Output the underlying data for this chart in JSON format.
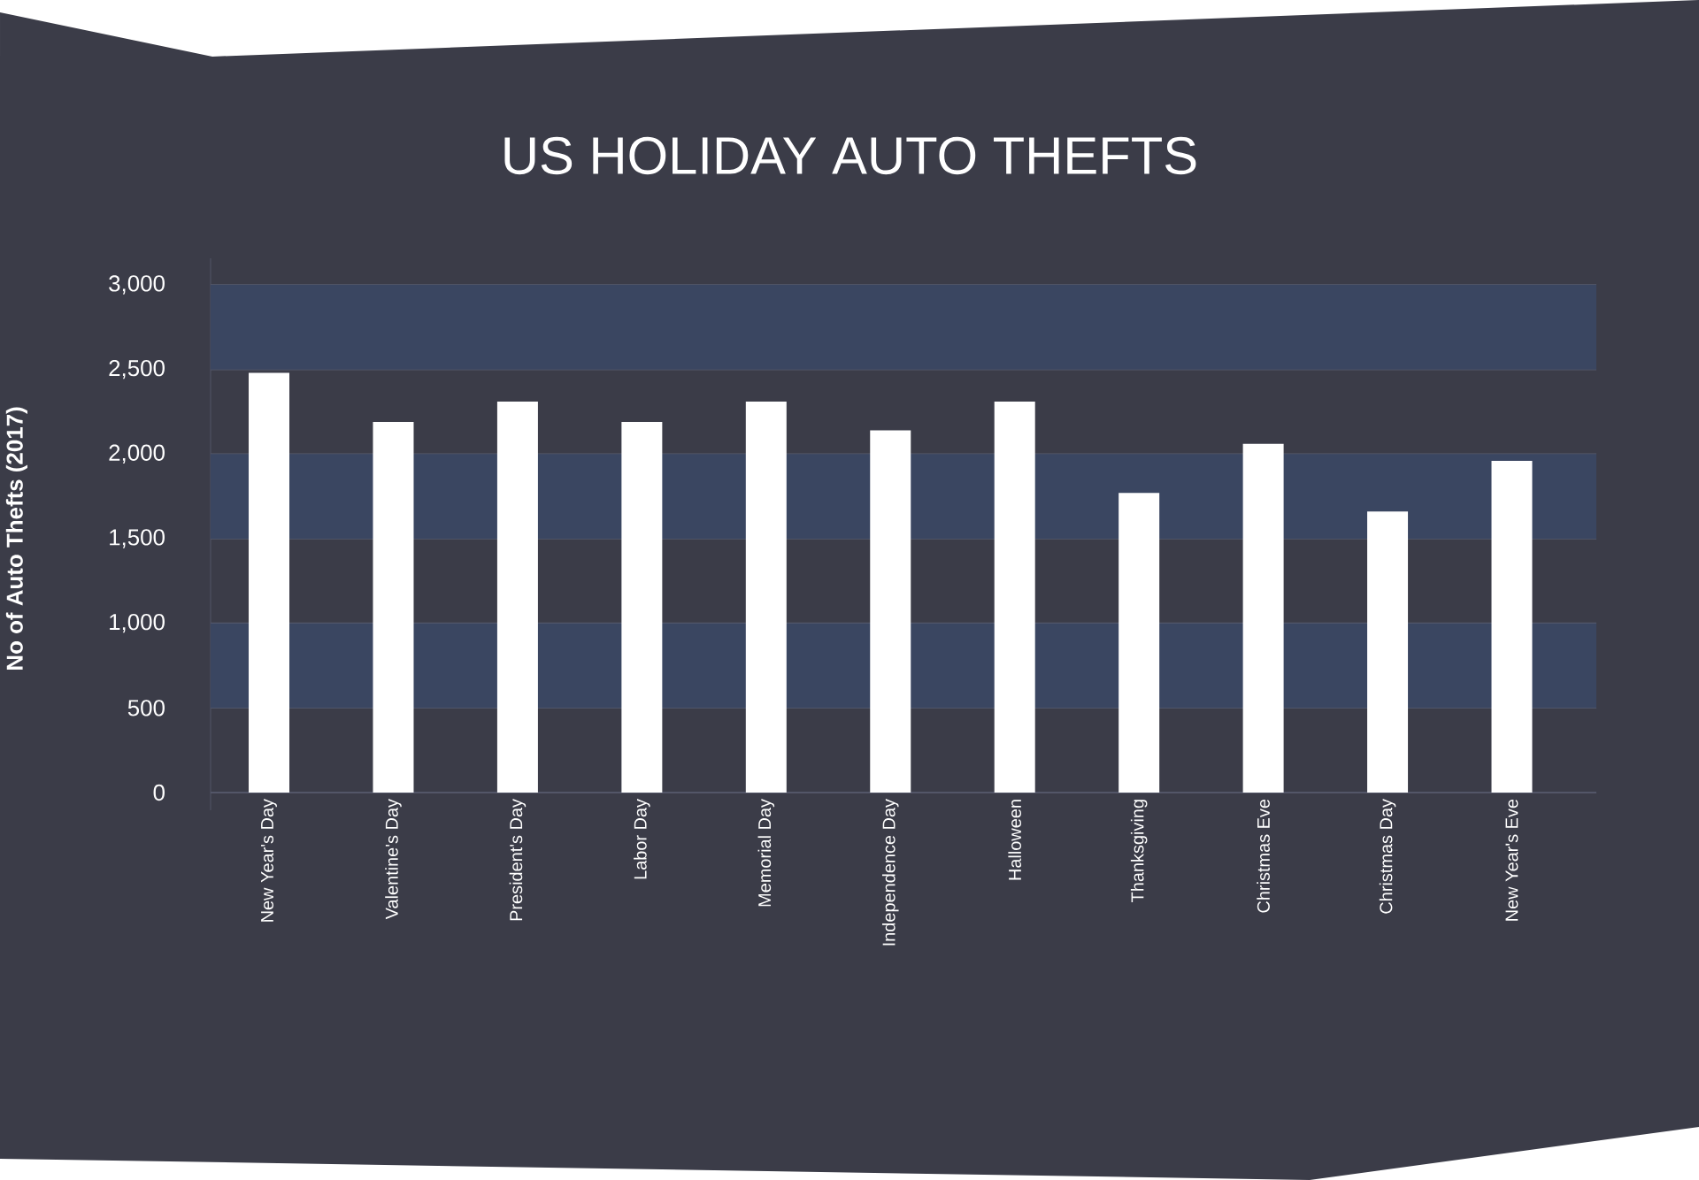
{
  "chart_data": {
    "type": "bar",
    "title": "US HOLIDAY AUTO THEFTS",
    "ylabel": "No of Auto Thefts (2017)",
    "categories": [
      "New Year's Day",
      "Valentine's Day",
      "President's Day",
      "Labor Day",
      "Memorial Day",
      "Independence Day",
      "Halloween",
      "Thanksgiving",
      "Christmas Eve",
      "Christmas Day",
      "New Year's Eve"
    ],
    "values": [
      2480,
      2190,
      2310,
      2190,
      2310,
      2140,
      2310,
      1770,
      2060,
      1660,
      1960
    ],
    "color": "#ffffff",
    "ylim": [
      0,
      3000
    ],
    "yticks": [
      {
        "value": 0,
        "label": "0"
      },
      {
        "value": 500,
        "label": "500"
      },
      {
        "value": 1000,
        "label": "1,000"
      },
      {
        "value": 1500,
        "label": "1,500"
      },
      {
        "value": 2000,
        "label": "2,000"
      },
      {
        "value": 2500,
        "label": "2,500"
      },
      {
        "value": 3000,
        "label": "3,000"
      }
    ],
    "bands": [
      {
        "axis": "y",
        "from": 500,
        "to": 1000,
        "color": "#3a4661"
      },
      {
        "axis": "y",
        "from": 1500,
        "to": 2000,
        "color": "#3a4661"
      },
      {
        "axis": "y",
        "from": 2500,
        "to": 3000,
        "color": "#3a4661"
      }
    ],
    "grid": "y"
  }
}
